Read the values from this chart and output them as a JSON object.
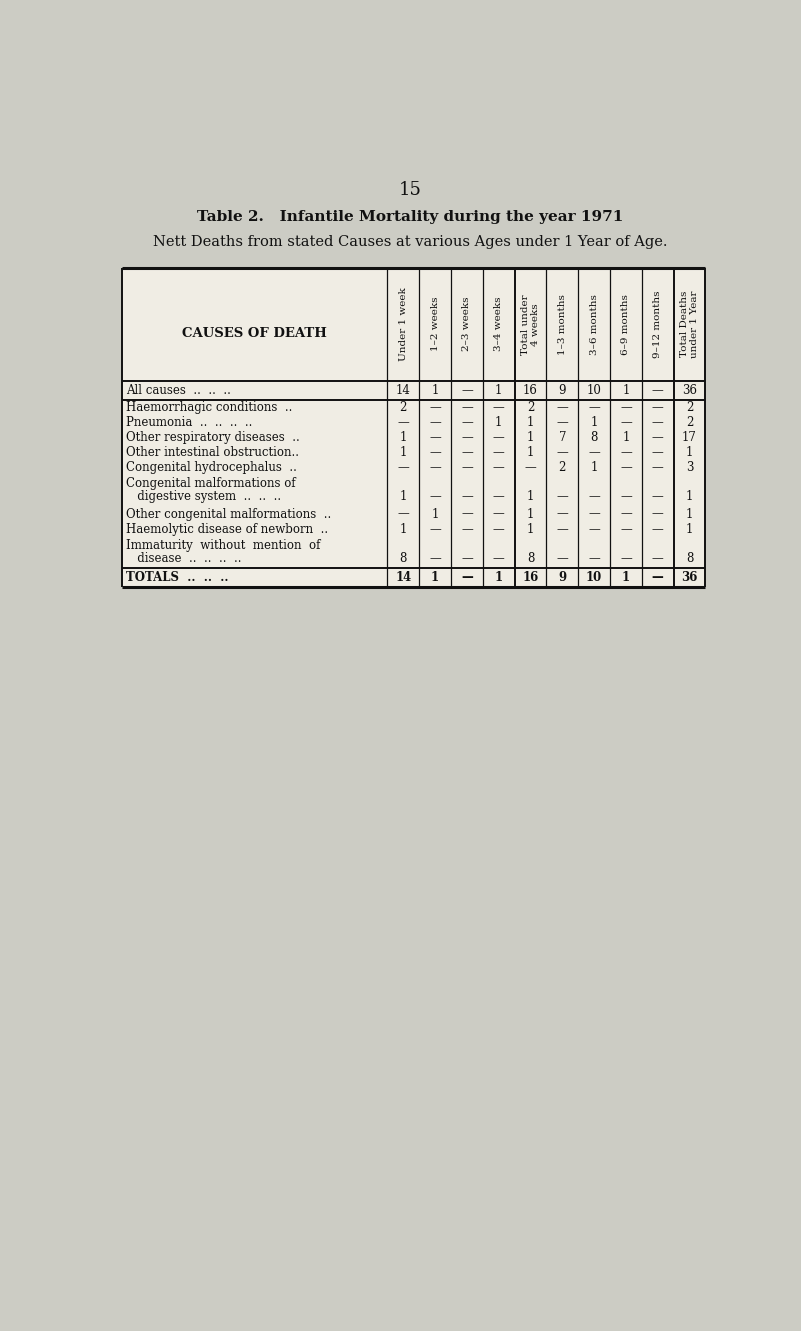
{
  "page_number": "15",
  "title_bold": "Table 2.   Infantile Mortality during the year 1971",
  "title_sub": "Nett Deaths from stated Causes at various Ages under 1 Year of Age.",
  "col_headers": [
    "Under 1 week",
    "1–2 weeks",
    "2–3 weeks",
    "3–4 weeks",
    "Total under\n4 weeks",
    "1–3 months",
    "3–6 months",
    "6–9 months",
    "9–12 months",
    "Total Deaths\nunder 1 Year"
  ],
  "row_header_label": "CAUSES OF DEATH",
  "rows": [
    {
      "label": "All causes  ..  ..  ..",
      "label2": null,
      "bold": false,
      "all_causes": true,
      "values": [
        "14",
        "1",
        "—",
        "1",
        "16",
        "9",
        "10",
        "1",
        "—",
        "36"
      ]
    },
    {
      "label": "Haemorrhagic conditions  ..",
      "label2": null,
      "bold": false,
      "all_causes": false,
      "values": [
        "2",
        "—",
        "—",
        "—",
        "2",
        "—",
        "—",
        "—",
        "—",
        "2"
      ]
    },
    {
      "label": "Pneumonia  ..  ..  ..  ..",
      "label2": null,
      "bold": false,
      "all_causes": false,
      "values": [
        "—",
        "—",
        "—",
        "1",
        "1",
        "—",
        "1",
        "—",
        "—",
        "2"
      ]
    },
    {
      "label": "Other respiratory diseases  ..",
      "label2": null,
      "bold": false,
      "all_causes": false,
      "values": [
        "1",
        "—",
        "—",
        "—",
        "1",
        "7",
        "8",
        "1",
        "—",
        "17"
      ]
    },
    {
      "label": "Other intestinal obstruction..",
      "label2": null,
      "bold": false,
      "all_causes": false,
      "values": [
        "1",
        "—",
        "—",
        "—",
        "1",
        "—",
        "—",
        "—",
        "—",
        "1"
      ]
    },
    {
      "label": "Congenital hydrocephalus  ..",
      "label2": null,
      "bold": false,
      "all_causes": false,
      "values": [
        "—",
        "—",
        "—",
        "—",
        "—",
        "2",
        "1",
        "—",
        "—",
        "3"
      ]
    },
    {
      "label": "Congenital malformations of",
      "label2": "   digestive system  ..  ..  ..",
      "bold": false,
      "all_causes": false,
      "values": [
        "1",
        "—",
        "—",
        "—",
        "1",
        "—",
        "—",
        "—",
        "—",
        "1"
      ]
    },
    {
      "label": "Other congenital malformations  ..",
      "label2": null,
      "bold": false,
      "all_causes": false,
      "values": [
        "—",
        "1",
        "—",
        "—",
        "1",
        "—",
        "—",
        "—",
        "—",
        "1"
      ]
    },
    {
      "label": "Haemolytic disease of newborn  ..",
      "label2": null,
      "bold": false,
      "all_causes": false,
      "values": [
        "1",
        "—",
        "—",
        "—",
        "1",
        "—",
        "—",
        "—",
        "—",
        "1"
      ]
    },
    {
      "label": "Immaturity  without  mention  of",
      "label2": "   disease  ..  ..  ..  ..",
      "bold": false,
      "all_causes": false,
      "values": [
        "8",
        "—",
        "—",
        "—",
        "8",
        "—",
        "—",
        "—",
        "—",
        "8"
      ]
    }
  ],
  "totals_row": {
    "label": "TOTALS  ..  ..  ..",
    "values": [
      "14",
      "1",
      "—",
      "1",
      "16",
      "9",
      "10",
      "1",
      "—",
      "36"
    ]
  },
  "background_color": "#ccccc4",
  "table_bg": "#f0ede4",
  "text_color": "#111111",
  "border_color": "#111111",
  "fig_width": 8.01,
  "fig_height": 13.31,
  "dpi": 100
}
